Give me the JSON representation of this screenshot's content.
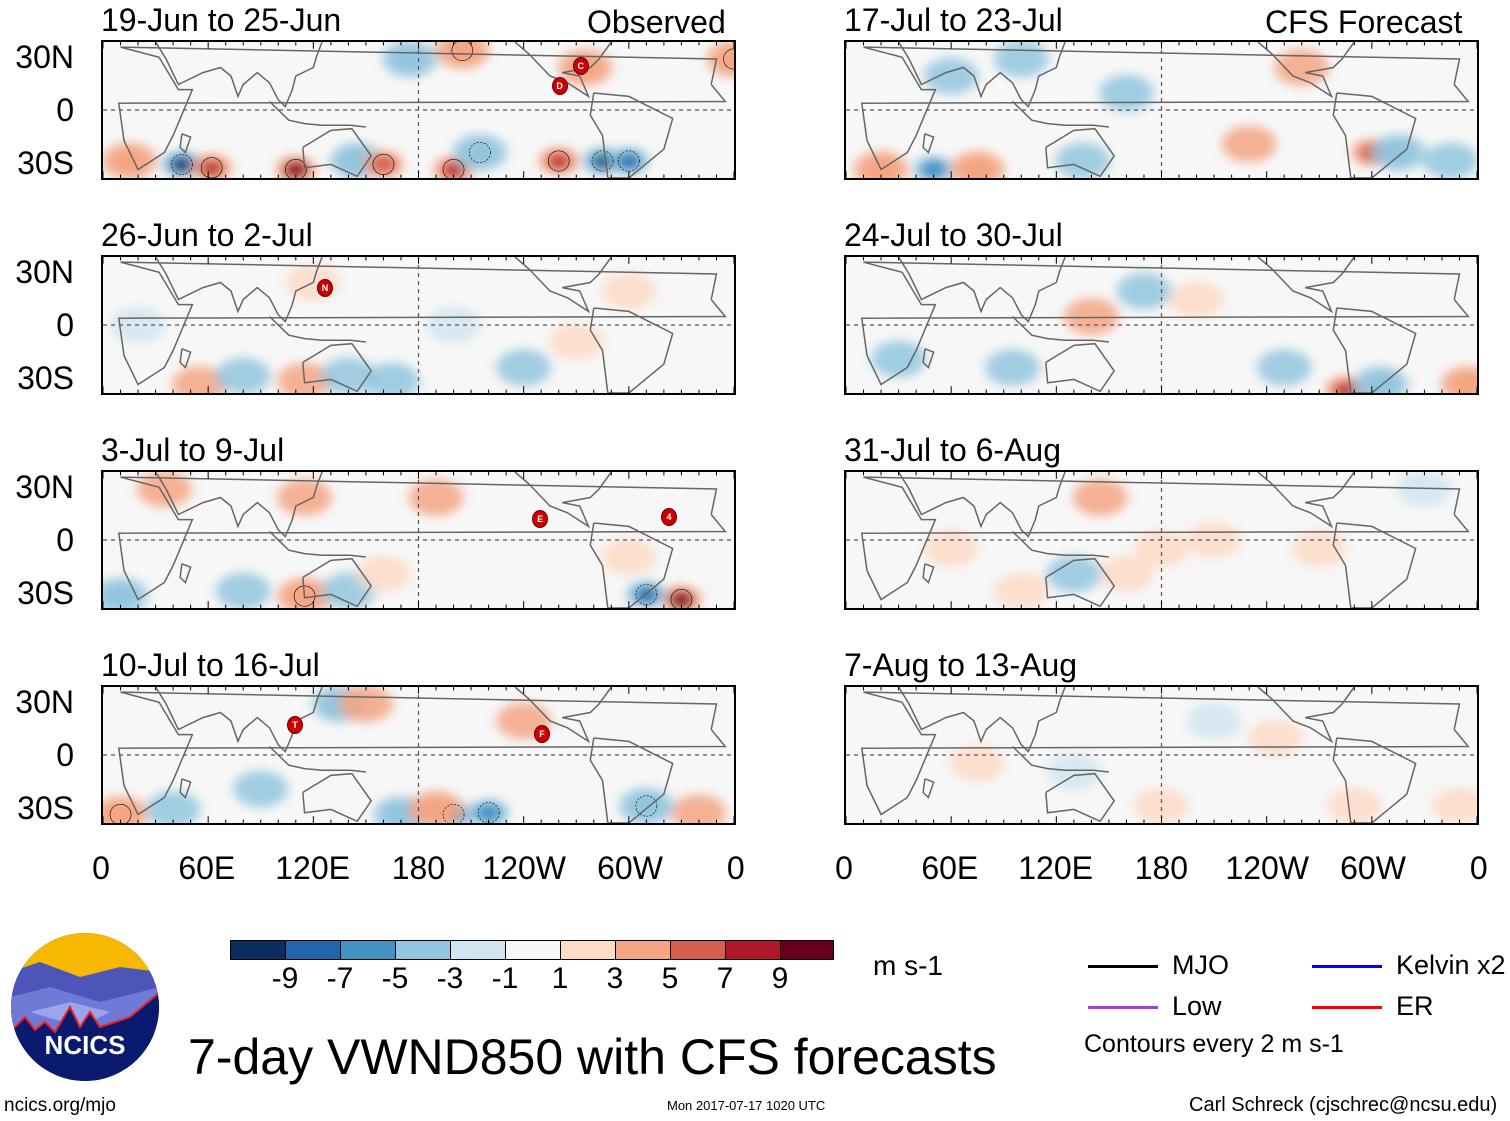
{
  "figure_title": "7-day VWND850 with CFS forecasts",
  "column_labels": {
    "left": "Observed",
    "right": "CFS Forecast"
  },
  "y_axis_labels": [
    "30N",
    "0",
    "30S"
  ],
  "x_axis_labels": [
    "0",
    "60E",
    "120E",
    "180",
    "120W",
    "60W",
    "0"
  ],
  "lat_range": [
    -40,
    40
  ],
  "lon_range": [
    0,
    360
  ],
  "panels": [
    {
      "title": "19-Jun to 25-Jun",
      "storms": [
        {
          "label": "C",
          "lon": 272,
          "lat": 25
        },
        {
          "label": "D",
          "lon": 260,
          "lat": 14
        }
      ],
      "anomalies": [
        [
          45,
          -32,
          -10
        ],
        [
          62,
          -34,
          9
        ],
        [
          110,
          -35,
          10
        ],
        [
          145,
          -30,
          -5
        ],
        [
          160,
          -32,
          7
        ],
        [
          200,
          -35,
          9
        ],
        [
          215,
          -25,
          -6
        ],
        [
          260,
          -30,
          9
        ],
        [
          285,
          -30,
          -9
        ],
        [
          300,
          -30,
          -8
        ],
        [
          360,
          30,
          6
        ],
        [
          205,
          35,
          6
        ],
        [
          175,
          30,
          -5
        ],
        [
          275,
          25,
          5
        ],
        [
          15,
          -30,
          5
        ]
      ]
    },
    {
      "title": "26-Jun to 2-Jul",
      "storms": [
        {
          "label": "N",
          "lon": 127,
          "lat": 21
        }
      ],
      "anomalies": [
        [
          55,
          -35,
          4
        ],
        [
          80,
          -30,
          -4
        ],
        [
          115,
          -33,
          4
        ],
        [
          140,
          -30,
          -3
        ],
        [
          165,
          -33,
          -3
        ],
        [
          120,
          25,
          3
        ],
        [
          240,
          -25,
          -3
        ],
        [
          300,
          20,
          3
        ],
        [
          200,
          0,
          -2
        ],
        [
          20,
          0,
          -2
        ],
        [
          270,
          -10,
          3
        ]
      ]
    },
    {
      "title": "3-Jul to 9-Jul",
      "storms": [
        {
          "label": "E",
          "lon": 249,
          "lat": 12
        },
        {
          "label": "4",
          "lon": 322,
          "lat": 13
        }
      ],
      "anomalies": [
        [
          330,
          -35,
          11
        ],
        [
          310,
          -32,
          -8
        ],
        [
          115,
          -33,
          6
        ],
        [
          80,
          -30,
          -4
        ],
        [
          10,
          -33,
          -5
        ],
        [
          140,
          -30,
          -3
        ],
        [
          35,
          30,
          4
        ],
        [
          115,
          25,
          4
        ],
        [
          190,
          25,
          4
        ],
        [
          160,
          -20,
          3
        ],
        [
          300,
          -10,
          3
        ]
      ]
    },
    {
      "title": "10-Jul to 16-Jul",
      "storms": [
        {
          "label": "T",
          "lon": 110,
          "lat": 17
        },
        {
          "label": "F",
          "lon": 250,
          "lat": 12
        }
      ],
      "anomalies": [
        [
          10,
          -35,
          6
        ],
        [
          40,
          -32,
          -4
        ],
        [
          170,
          -35,
          -5
        ],
        [
          200,
          -35,
          -7
        ],
        [
          220,
          -34,
          -7
        ],
        [
          190,
          -32,
          5
        ],
        [
          310,
          -30,
          -6
        ],
        [
          340,
          -34,
          4
        ],
        [
          135,
          30,
          -5
        ],
        [
          150,
          30,
          4
        ],
        [
          240,
          20,
          4
        ],
        [
          90,
          -20,
          -3
        ]
      ]
    },
    {
      "title": "17-Jul to 23-Jul",
      "storms": [],
      "anomalies": [
        [
          50,
          -35,
          -7
        ],
        [
          75,
          -35,
          6
        ],
        [
          20,
          -35,
          5
        ],
        [
          135,
          -30,
          -4
        ],
        [
          300,
          -25,
          7
        ],
        [
          315,
          -25,
          -5
        ],
        [
          230,
          -20,
          4
        ],
        [
          60,
          20,
          -3
        ],
        [
          160,
          10,
          -3
        ],
        [
          260,
          25,
          4
        ],
        [
          345,
          -30,
          -4
        ],
        [
          100,
          30,
          -3
        ]
      ]
    },
    {
      "title": "24-Jul to 30-Jul",
      "storms": [],
      "anomalies": [
        [
          285,
          -38,
          9
        ],
        [
          305,
          -35,
          -6
        ],
        [
          355,
          -35,
          5
        ],
        [
          140,
          5,
          4
        ],
        [
          95,
          -25,
          -3
        ],
        [
          250,
          -25,
          -3
        ],
        [
          170,
          20,
          -3
        ],
        [
          200,
          15,
          3
        ],
        [
          30,
          -20,
          -3
        ]
      ]
    },
    {
      "title": "31-Jul to 6-Aug",
      "storms": [],
      "anomalies": [
        [
          145,
          25,
          4
        ],
        [
          160,
          -20,
          3
        ],
        [
          100,
          -30,
          3
        ],
        [
          180,
          -5,
          2
        ],
        [
          210,
          0,
          2
        ],
        [
          270,
          -5,
          2
        ],
        [
          60,
          -5,
          2
        ],
        [
          130,
          -20,
          -3
        ],
        [
          330,
          30,
          -2
        ]
      ]
    },
    {
      "title": "7-Aug to 13-Aug",
      "storms": [],
      "anomalies": [
        [
          75,
          -5,
          2
        ],
        [
          130,
          -10,
          -2
        ],
        [
          180,
          -30,
          2
        ],
        [
          290,
          -30,
          2
        ],
        [
          350,
          -30,
          2
        ],
        [
          210,
          20,
          -2
        ],
        [
          245,
          10,
          2
        ]
      ]
    }
  ],
  "colorbar": {
    "labels": [
      "-9",
      "-7",
      "-5",
      "-3",
      "-1",
      "1",
      "3",
      "5",
      "7",
      "9"
    ],
    "colors": [
      "#0b2e5e",
      "#2166ac",
      "#4393c3",
      "#92c5de",
      "#d1e5f0",
      "#f7f7f7",
      "#fddbc7",
      "#f4a582",
      "#d6604d",
      "#b2182b",
      "#67001f"
    ],
    "units": "m s-1"
  },
  "legend": {
    "items": [
      {
        "label": "MJO",
        "color": "#000000"
      },
      {
        "label": "Kelvin x2",
        "color": "#0000ff"
      },
      {
        "label": "Low",
        "color": "#a040e0"
      },
      {
        "label": "ER",
        "color": "#ff0000"
      }
    ],
    "note": "Contours every 2 m s-1"
  },
  "logo_text": "NCICS",
  "url": "ncics.org/mjo",
  "timestamp": "Mon 2017-07-17 1020 UTC",
  "credit": "Carl Schreck (cjschrec@ncsu.edu)"
}
